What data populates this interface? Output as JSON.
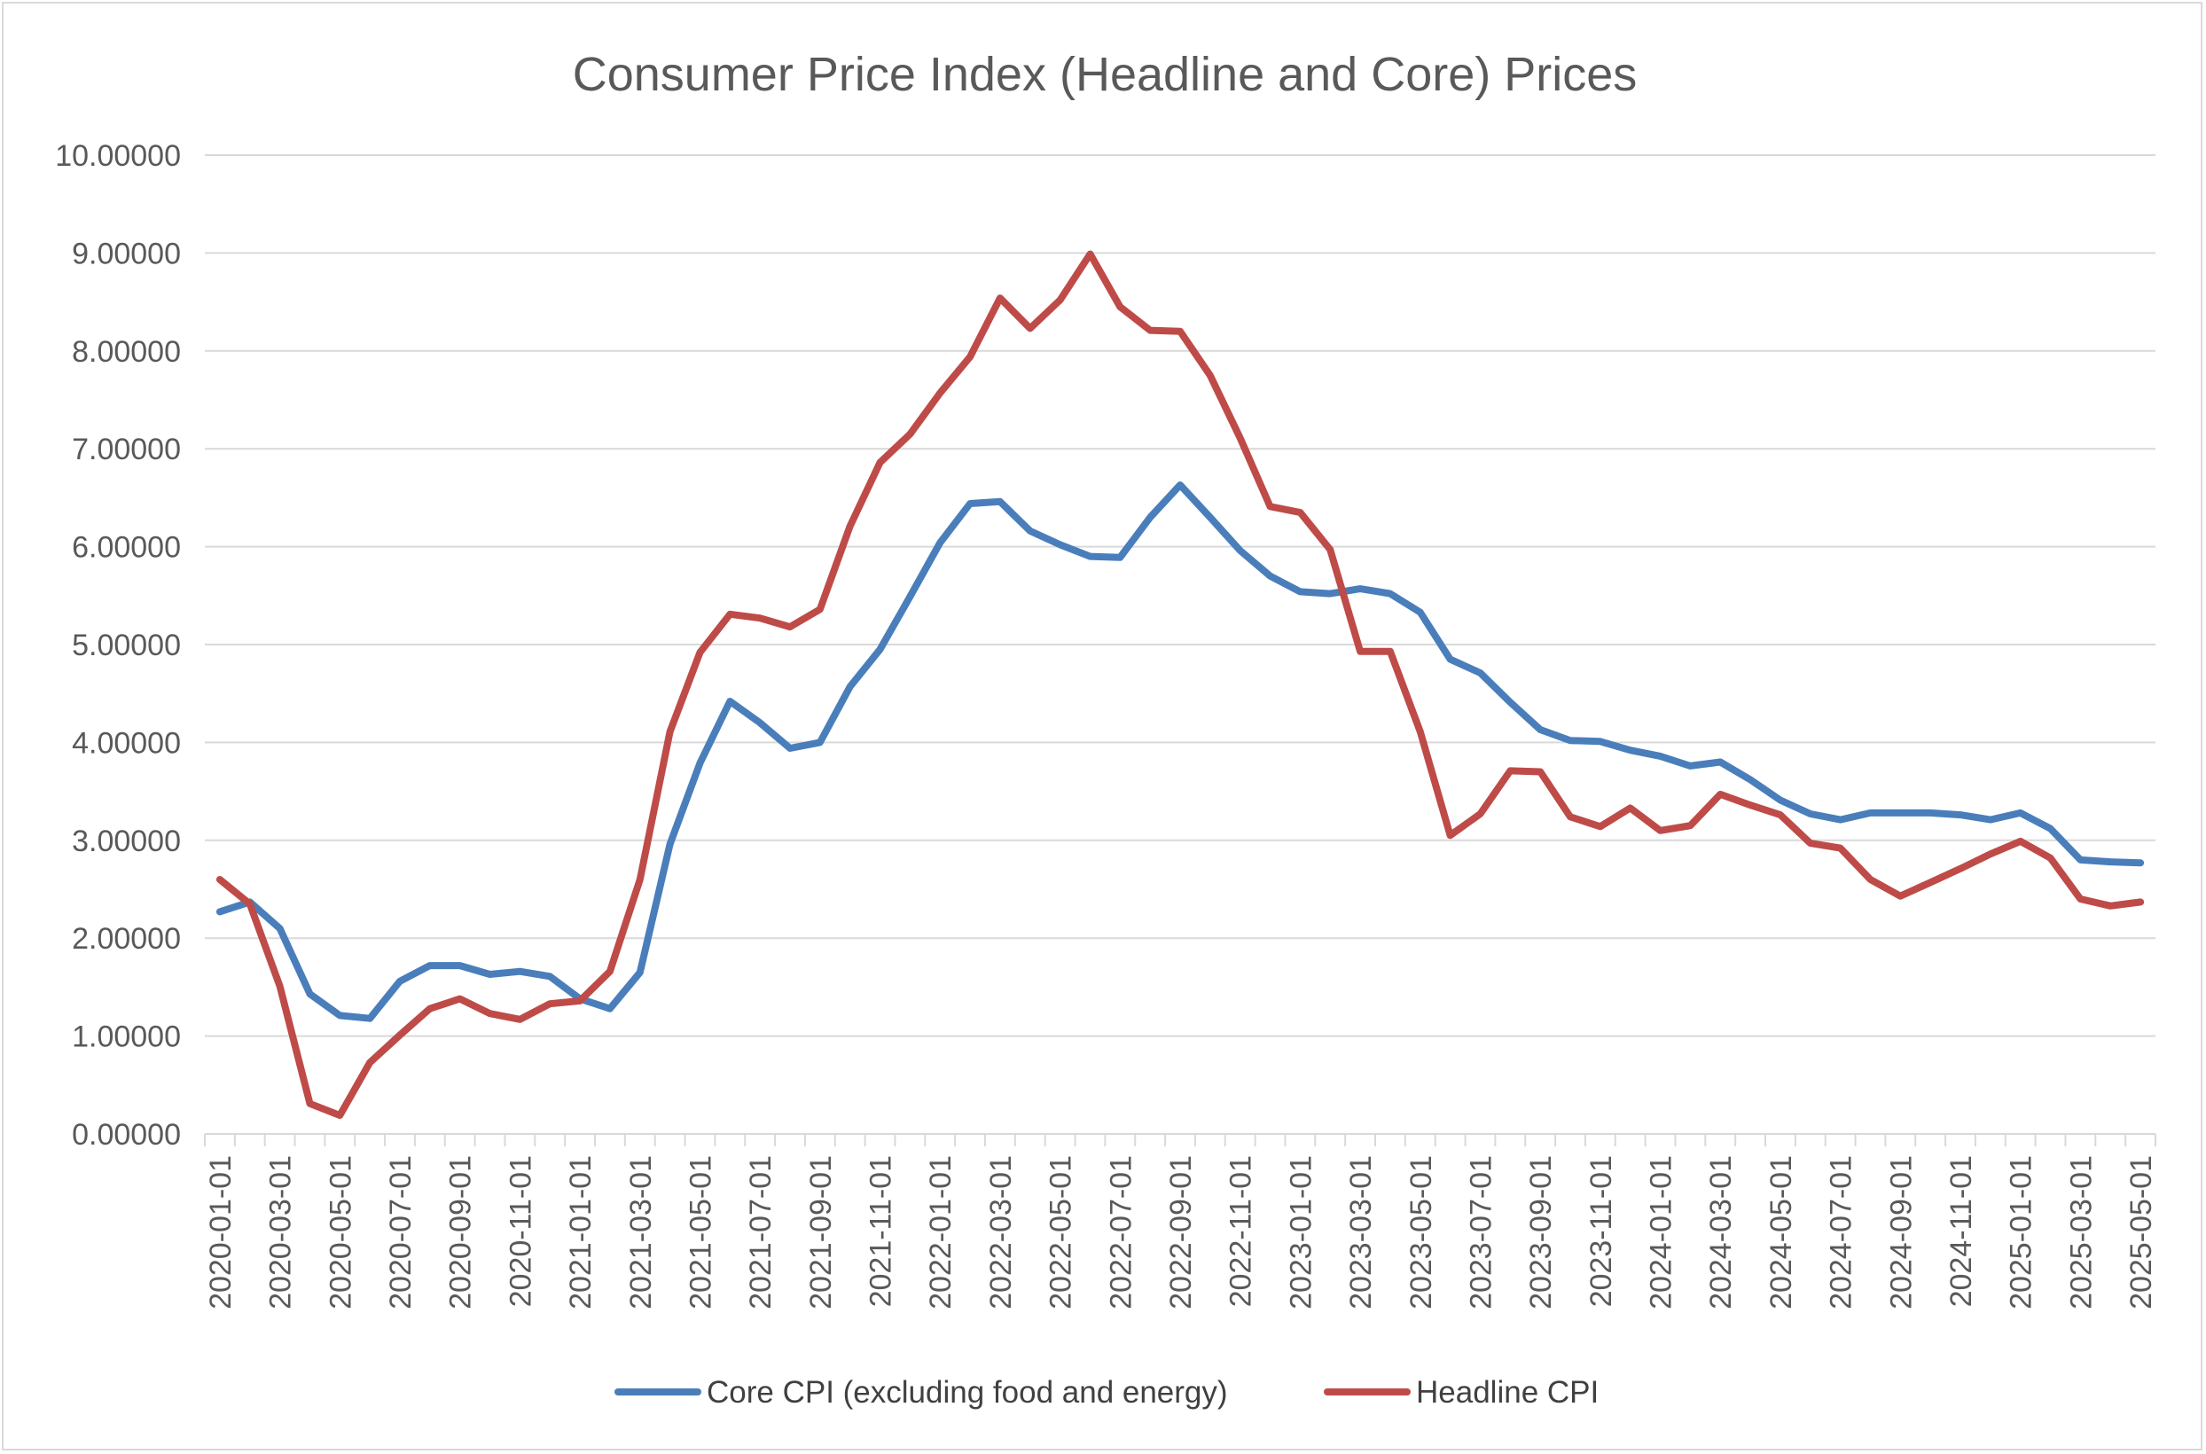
{
  "chart_data": {
    "type": "line",
    "title": "Consumer Price Index (Headline and Core) Prices",
    "xlabel": "",
    "ylabel": "",
    "ylim": [
      0,
      10
    ],
    "yticks": [
      "0.00000",
      "1.00000",
      "2.00000",
      "3.00000",
      "4.00000",
      "5.00000",
      "6.00000",
      "7.00000",
      "8.00000",
      "9.00000",
      "10.00000"
    ],
    "grid": true,
    "legend_position": "bottom",
    "x": [
      "2020-01-01",
      "2020-02-01",
      "2020-03-01",
      "2020-04-01",
      "2020-05-01",
      "2020-06-01",
      "2020-07-01",
      "2020-08-01",
      "2020-09-01",
      "2020-10-01",
      "2020-11-01",
      "2020-12-01",
      "2021-01-01",
      "2021-02-01",
      "2021-03-01",
      "2021-04-01",
      "2021-05-01",
      "2021-06-01",
      "2021-07-01",
      "2021-08-01",
      "2021-09-01",
      "2021-10-01",
      "2021-11-01",
      "2021-12-01",
      "2022-01-01",
      "2022-02-01",
      "2022-03-01",
      "2022-04-01",
      "2022-05-01",
      "2022-06-01",
      "2022-07-01",
      "2022-08-01",
      "2022-09-01",
      "2022-10-01",
      "2022-11-01",
      "2022-12-01",
      "2023-01-01",
      "2023-02-01",
      "2023-03-01",
      "2023-04-01",
      "2023-05-01",
      "2023-06-01",
      "2023-07-01",
      "2023-08-01",
      "2023-09-01",
      "2023-10-01",
      "2023-11-01",
      "2023-12-01",
      "2024-01-01",
      "2024-02-01",
      "2024-03-01",
      "2024-04-01",
      "2024-05-01",
      "2024-06-01",
      "2024-07-01",
      "2024-08-01",
      "2024-09-01",
      "2024-10-01",
      "2024-11-01",
      "2024-12-01",
      "2025-01-01",
      "2025-02-01",
      "2025-03-01",
      "2025-04-01",
      "2025-05-01"
    ],
    "xtick_labels": [
      "2020-01-01",
      "2020-03-01",
      "2020-05-01",
      "2020-07-01",
      "2020-09-01",
      "2020-11-01",
      "2021-01-01",
      "2021-03-01",
      "2021-05-01",
      "2021-07-01",
      "2021-09-01",
      "2021-11-01",
      "2022-01-01",
      "2022-03-01",
      "2022-05-01",
      "2022-07-01",
      "2022-09-01",
      "2022-11-01",
      "2023-01-01",
      "2023-03-01",
      "2023-05-01",
      "2023-07-01",
      "2023-09-01",
      "2023-11-01",
      "2024-01-01",
      "2024-03-01",
      "2024-05-01",
      "2024-07-01",
      "2024-09-01",
      "2024-11-01",
      "2025-01-01",
      "2025-03-01",
      "2025-05-01"
    ],
    "series": [
      {
        "name": "Core CPI (excluding food and energy)",
        "color": "#4a7ebb",
        "values": [
          2.27,
          2.37,
          2.1,
          1.43,
          1.21,
          1.18,
          1.56,
          1.72,
          1.72,
          1.63,
          1.66,
          1.61,
          1.38,
          1.28,
          1.65,
          2.96,
          3.79,
          4.42,
          4.2,
          3.94,
          4.0,
          4.57,
          4.95,
          5.49,
          6.04,
          6.44,
          6.46,
          6.16,
          6.02,
          5.9,
          5.89,
          6.3,
          6.63,
          6.3,
          5.96,
          5.7,
          5.54,
          5.52,
          5.57,
          5.52,
          5.33,
          4.85,
          4.71,
          4.41,
          4.13,
          4.02,
          4.01,
          3.92,
          3.86,
          3.76,
          3.8,
          3.62,
          3.41,
          3.27,
          3.21,
          3.28,
          3.28,
          3.28,
          3.26,
          3.21,
          3.28,
          3.12,
          2.8,
          2.78,
          2.77
        ]
      },
      {
        "name": "Headline CPI",
        "color": "#be4b48",
        "values": [
          2.6,
          2.35,
          1.51,
          0.31,
          0.19,
          0.73,
          1.01,
          1.28,
          1.38,
          1.23,
          1.17,
          1.33,
          1.36,
          1.66,
          2.6,
          4.11,
          4.92,
          5.31,
          5.27,
          5.18,
          5.36,
          6.21,
          6.86,
          7.15,
          7.57,
          7.94,
          8.54,
          8.23,
          8.52,
          8.99,
          8.45,
          8.21,
          8.2,
          7.75,
          7.11,
          6.41,
          6.35,
          5.97,
          4.93,
          4.93,
          4.11,
          3.05,
          3.27,
          3.71,
          3.7,
          3.24,
          3.14,
          3.33,
          3.1,
          3.15,
          3.47,
          3.36,
          3.26,
          2.97,
          2.92,
          2.6,
          2.43,
          2.57,
          2.71,
          2.86,
          2.99,
          2.82,
          2.4,
          2.33,
          2.37
        ]
      }
    ]
  }
}
